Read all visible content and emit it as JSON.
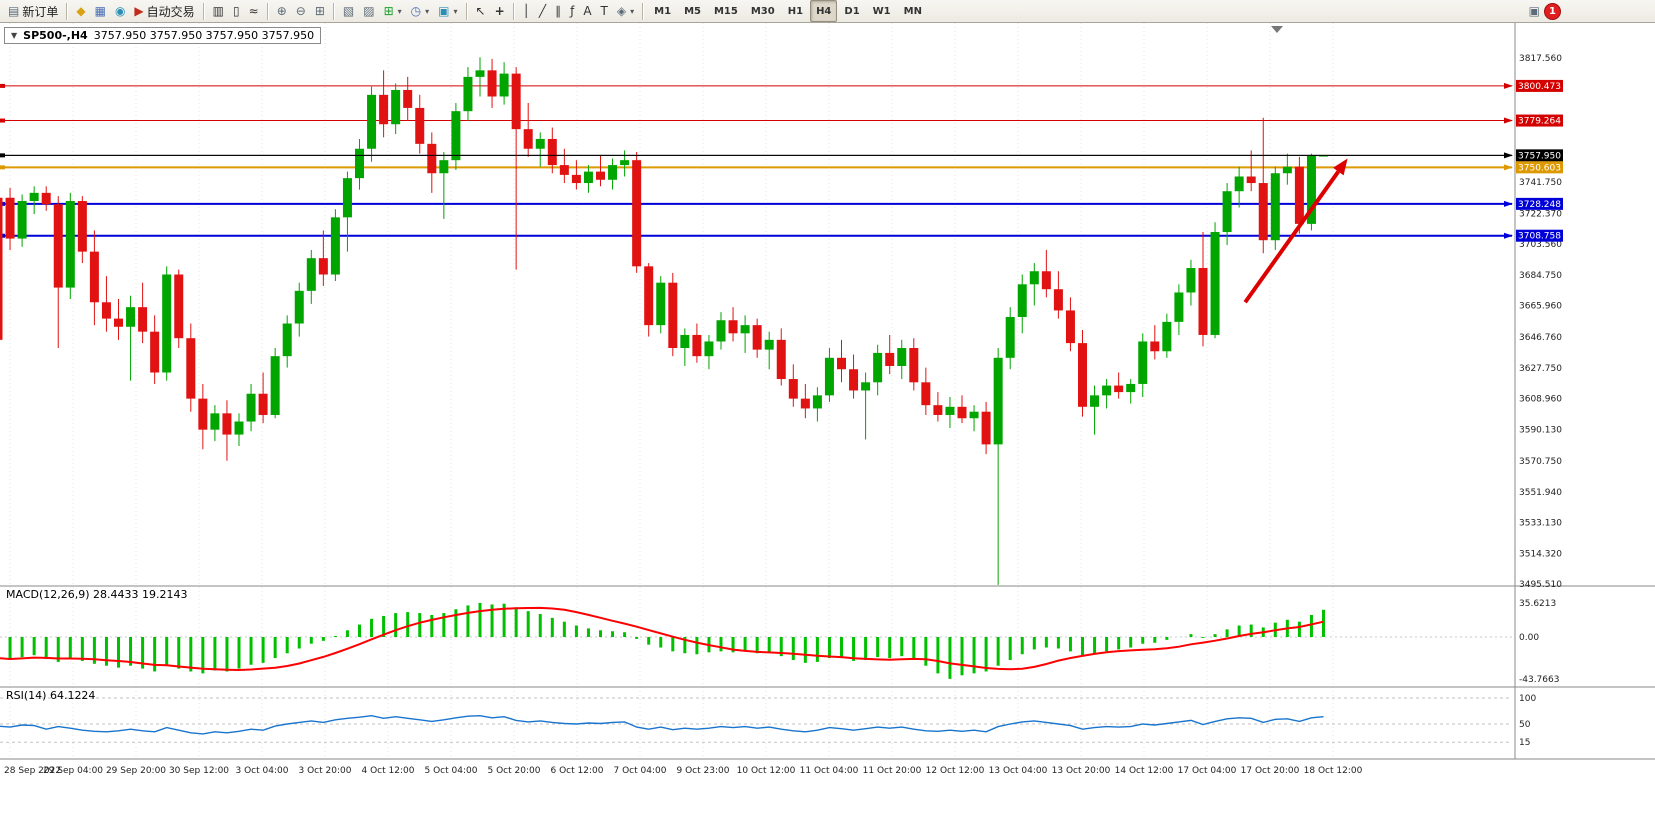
{
  "toolbar": {
    "new_order_label": "新订单",
    "autotrading_label": "自动交易",
    "timeframes": [
      "M1",
      "M5",
      "M15",
      "M30",
      "H1",
      "H4",
      "D1",
      "W1",
      "MN"
    ],
    "active_timeframe": "H4",
    "notification_count": "1",
    "icons": {
      "new_order": "▤",
      "metaeditor": "◆",
      "charts": "▦",
      "community": "◉",
      "autotrading": "▶",
      "bars": "▥",
      "candles": "▯",
      "line_chart": "≈",
      "zoom_in": "⊕",
      "zoom_out": "⊖",
      "tile": "⊞",
      "data_window": "▧",
      "navigator": "▨",
      "new_chart": "⊞",
      "period": "◷",
      "template": "▣",
      "cursor": "↖",
      "crosshair": "+",
      "vline": "│",
      "trend": "╱",
      "channel": "∥",
      "fib": "ƒ",
      "text": "A",
      "label": "T",
      "shapes": "◈",
      "caret": "▾",
      "alerts": "▣"
    }
  },
  "chart": {
    "symbol_period": "SP500-,H4",
    "ohlc": "3757.950 3757.950 3757.950 3757.950",
    "collapse_arrow": "▼"
  },
  "indicators": {
    "macd_label": "MACD(12,26,9) 28.4433 19.2143",
    "rsi_label": "RSI(14) 64.1224"
  },
  "chart_data": {
    "type": "candlestick",
    "symbol": "SP500-",
    "period": "H4",
    "title": "SP500-,H4 3757.950 3757.950 3757.950 3757.950",
    "price_range": {
      "top": 3817.56,
      "bottom": 3495.51
    },
    "grid": true,
    "candles": [
      [
        3732,
        3737,
        3638,
        3645
      ],
      [
        3732,
        3738,
        3700,
        3707
      ],
      [
        3707,
        3734,
        3702,
        3730
      ],
      [
        3730,
        3739,
        3722,
        3735
      ],
      [
        3735,
        3739,
        3724,
        3728
      ],
      [
        3728,
        3733,
        3640,
        3677
      ],
      [
        3677,
        3735,
        3670,
        3730
      ],
      [
        3730,
        3733,
        3692,
        3699
      ],
      [
        3699,
        3712,
        3654,
        3668
      ],
      [
        3668,
        3684,
        3650,
        3658
      ],
      [
        3658,
        3670,
        3645,
        3653
      ],
      [
        3653,
        3672,
        3620,
        3665
      ],
      [
        3665,
        3680,
        3643,
        3650
      ],
      [
        3650,
        3660,
        3618,
        3625
      ],
      [
        3625,
        3690,
        3620,
        3685
      ],
      [
        3685,
        3688,
        3640,
        3646
      ],
      [
        3646,
        3655,
        3601,
        3609
      ],
      [
        3609,
        3618,
        3578,
        3590
      ],
      [
        3590,
        3605,
        3583,
        3600
      ],
      [
        3600,
        3608,
        3571,
        3587
      ],
      [
        3587,
        3600,
        3580,
        3595
      ],
      [
        3595,
        3618,
        3589,
        3612
      ],
      [
        3612,
        3625,
        3594,
        3599
      ],
      [
        3599,
        3640,
        3597,
        3635
      ],
      [
        3635,
        3660,
        3628,
        3655
      ],
      [
        3655,
        3680,
        3647,
        3675
      ],
      [
        3675,
        3700,
        3667,
        3695
      ],
      [
        3695,
        3712,
        3678,
        3685
      ],
      [
        3685,
        3725,
        3681,
        3720
      ],
      [
        3720,
        3748,
        3699,
        3744
      ],
      [
        3744,
        3768,
        3737,
        3762
      ],
      [
        3762,
        3800,
        3754,
        3795
      ],
      [
        3795,
        3810,
        3769,
        3777
      ],
      [
        3777,
        3802,
        3771,
        3798
      ],
      [
        3798,
        3806,
        3779,
        3787
      ],
      [
        3787,
        3795,
        3759,
        3765
      ],
      [
        3765,
        3772,
        3735,
        3747
      ],
      [
        3747,
        3760,
        3719,
        3755
      ],
      [
        3755,
        3790,
        3749,
        3785
      ],
      [
        3785,
        3812,
        3779,
        3806
      ],
      [
        3806,
        3818,
        3794,
        3810
      ],
      [
        3810,
        3817,
        3787,
        3794
      ],
      [
        3794,
        3815,
        3789,
        3808
      ],
      [
        3808,
        3812,
        3688,
        3774
      ],
      [
        3774,
        3790,
        3757,
        3762
      ],
      [
        3762,
        3772,
        3751,
        3768
      ],
      [
        3768,
        3775,
        3747,
        3752
      ],
      [
        3752,
        3762,
        3741,
        3746
      ],
      [
        3746,
        3755,
        3737,
        3741
      ],
      [
        3741,
        3752,
        3735,
        3748
      ],
      [
        3748,
        3758,
        3739,
        3743
      ],
      [
        3743,
        3756,
        3737,
        3752
      ],
      [
        3752,
        3761,
        3745,
        3755
      ],
      [
        3755,
        3760,
        3686,
        3690
      ],
      [
        3690,
        3692,
        3647,
        3654
      ],
      [
        3654,
        3684,
        3649,
        3680
      ],
      [
        3680,
        3686,
        3635,
        3640
      ],
      [
        3640,
        3652,
        3629,
        3648
      ],
      [
        3648,
        3655,
        3631,
        3635
      ],
      [
        3635,
        3648,
        3627,
        3644
      ],
      [
        3644,
        3662,
        3639,
        3657
      ],
      [
        3657,
        3665,
        3644,
        3649
      ],
      [
        3649,
        3660,
        3637,
        3654
      ],
      [
        3654,
        3658,
        3634,
        3639
      ],
      [
        3639,
        3650,
        3627,
        3645
      ],
      [
        3645,
        3652,
        3617,
        3621
      ],
      [
        3621,
        3630,
        3604,
        3609
      ],
      [
        3609,
        3618,
        3597,
        3603
      ],
      [
        3603,
        3616,
        3595,
        3611
      ],
      [
        3611,
        3640,
        3607,
        3634
      ],
      [
        3634,
        3645,
        3619,
        3627
      ],
      [
        3627,
        3636,
        3609,
        3614
      ],
      [
        3614,
        3625,
        3584,
        3619
      ],
      [
        3619,
        3642,
        3611,
        3637
      ],
      [
        3637,
        3648,
        3624,
        3629
      ],
      [
        3629,
        3645,
        3621,
        3640
      ],
      [
        3640,
        3646,
        3614,
        3619
      ],
      [
        3619,
        3628,
        3599,
        3605
      ],
      [
        3605,
        3613,
        3595,
        3599
      ],
      [
        3599,
        3610,
        3591,
        3604
      ],
      [
        3604,
        3611,
        3594,
        3597
      ],
      [
        3597,
        3605,
        3589,
        3601
      ],
      [
        3601,
        3607,
        3575,
        3581
      ],
      [
        3581,
        3640,
        3495,
        3634
      ],
      [
        3634,
        3665,
        3627,
        3659
      ],
      [
        3659,
        3685,
        3649,
        3679
      ],
      [
        3679,
        3692,
        3666,
        3687
      ],
      [
        3687,
        3700,
        3671,
        3676
      ],
      [
        3676,
        3687,
        3658,
        3663
      ],
      [
        3663,
        3671,
        3638,
        3643
      ],
      [
        3643,
        3651,
        3598,
        3604
      ],
      [
        3604,
        3617,
        3587,
        3611
      ],
      [
        3611,
        3621,
        3603,
        3617
      ],
      [
        3617,
        3625,
        3609,
        3613
      ],
      [
        3613,
        3621,
        3606,
        3618
      ],
      [
        3618,
        3649,
        3610,
        3644
      ],
      [
        3644,
        3654,
        3633,
        3638
      ],
      [
        3638,
        3661,
        3634,
        3656
      ],
      [
        3656,
        3679,
        3648,
        3674
      ],
      [
        3674,
        3694,
        3666,
        3689
      ],
      [
        3689,
        3711,
        3641,
        3648
      ],
      [
        3648,
        3717,
        3646,
        3711
      ],
      [
        3711,
        3741,
        3703,
        3736
      ],
      [
        3736,
        3751,
        3726,
        3745
      ],
      [
        3745,
        3761,
        3736,
        3741
      ],
      [
        3741,
        3781,
        3698,
        3706
      ],
      [
        3706,
        3751,
        3700,
        3747
      ],
      [
        3747,
        3759,
        3740,
        3751
      ],
      [
        3751,
        3757,
        3710,
        3716
      ],
      [
        3716,
        3759,
        3712,
        3757.95
      ],
      [
        3757.95,
        3757.95,
        3757.95,
        3757.95
      ]
    ],
    "time_labels": [
      "28 Sep 2022",
      "29 Sep 04:00",
      "29 Sep 20:00",
      "30 Sep 12:00",
      "3 Oct 04:00",
      "3 Oct 20:00",
      "4 Oct 12:00",
      "5 Oct 04:00",
      "5 Oct 20:00",
      "6 Oct 12:00",
      "7 Oct 04:00",
      "9 Oct 23:00",
      "10 Oct 12:00",
      "11 Oct 04:00",
      "11 Oct 20:00",
      "12 Oct 12:00",
      "13 Oct 04:00",
      "13 Oct 20:00",
      "14 Oct 12:00",
      "17 Oct 04:00",
      "17 Oct 20:00",
      "18 Oct 12:00"
    ],
    "price_ticks": [
      "3817.560",
      "3741.750",
      "3722.370",
      "3703.560",
      "3684.750",
      "3665.960",
      "3646.760",
      "3627.750",
      "3608.960",
      "3590.130",
      "3570.750",
      "3551.940",
      "3533.130",
      "3514.320",
      "3495.510"
    ],
    "hlines": [
      {
        "value": 3800.473,
        "label": "3800.473",
        "color": "#d40000",
        "width": 1
      },
      {
        "value": 3779.264,
        "label": "3779.264",
        "color": "#d40000",
        "width": 1
      },
      {
        "value": 3757.95,
        "label": "3757.950",
        "color": "#000000",
        "width": 1,
        "current": true
      },
      {
        "value": 3750.603,
        "label": "3750.603",
        "color": "#dd9900",
        "width": 2
      },
      {
        "value": 3728.248,
        "label": "3728.248",
        "color": "#0000d8",
        "width": 2
      },
      {
        "value": 3708.758,
        "label": "3708.758",
        "color": "#0000d8",
        "width": 2
      }
    ],
    "macd": {
      "params": "12,26,9",
      "main_value": 28.4433,
      "signal_value": 19.2143,
      "ticks": [
        "35.6213",
        "0.00",
        "-43.7663"
      ],
      "values": [
        -22,
        -24,
        -21,
        -19,
        -23,
        -26,
        -22,
        -25,
        -28,
        -30,
        -32,
        -30,
        -33,
        -36,
        -30,
        -33,
        -36,
        -38,
        -35,
        -36,
        -33,
        -29,
        -27,
        -22,
        -17,
        -12,
        -7,
        -4,
        1,
        7,
        13,
        19,
        22,
        25,
        26,
        25,
        23,
        25,
        29,
        33,
        35.6,
        34,
        34.8,
        31,
        27,
        24,
        20,
        16,
        12,
        9,
        7,
        6,
        5,
        -2,
        -8,
        -11,
        -15,
        -17,
        -18,
        -16,
        -15,
        -16,
        -15,
        -17,
        -16,
        -20,
        -24,
        -27,
        -26,
        -22,
        -22,
        -25,
        -24,
        -21,
        -22,
        -20,
        -24,
        -30,
        -38,
        -43.77,
        -40,
        -38,
        -36,
        -30,
        -24,
        -18,
        -13,
        -11,
        -12,
        -15,
        -19,
        -17,
        -15,
        -13,
        -11,
        -7,
        -6,
        -3,
        0,
        3,
        -1,
        3,
        8,
        12,
        13,
        10,
        15,
        18,
        16,
        23,
        28.4433
      ]
    },
    "rsi": {
      "params": "14",
      "value": 64.1224,
      "ticks": [
        "100",
        "50",
        "15"
      ],
      "levels": [
        100,
        50,
        15
      ],
      "values": [
        46,
        44,
        48,
        47,
        40,
        45,
        42,
        38,
        36,
        35,
        37,
        40,
        37,
        35,
        43,
        38,
        33,
        31,
        35,
        33,
        36,
        40,
        38,
        46,
        50,
        53,
        56,
        53,
        58,
        61,
        63,
        66,
        61,
        64,
        61,
        58,
        55,
        58,
        62,
        65,
        66,
        62,
        64,
        57,
        54,
        56,
        53,
        51,
        50,
        52,
        51,
        53,
        54,
        44,
        40,
        44,
        39,
        42,
        40,
        42,
        45,
        43,
        45,
        42,
        44,
        40,
        37,
        35,
        38,
        43,
        41,
        38,
        41,
        44,
        42,
        44,
        40,
        37,
        36,
        38,
        36,
        38,
        35,
        45,
        50,
        54,
        56,
        53,
        50,
        47,
        40,
        43,
        45,
        44,
        45,
        50,
        48,
        51,
        54,
        57,
        49,
        55,
        60,
        62,
        61,
        53,
        59,
        60,
        55,
        62,
        64.1224
      ]
    },
    "annotation_arrow": {
      "from_index": 103.5,
      "from_price": 3668,
      "to_index": 112,
      "to_price": 3756
    },
    "colors": {
      "up": "#00a500",
      "down": "#e01212",
      "macd_hist": "#00c000",
      "macd_signal": "#ff0000",
      "rsi_line": "#1874cd",
      "arrow": "#dd0000"
    }
  }
}
